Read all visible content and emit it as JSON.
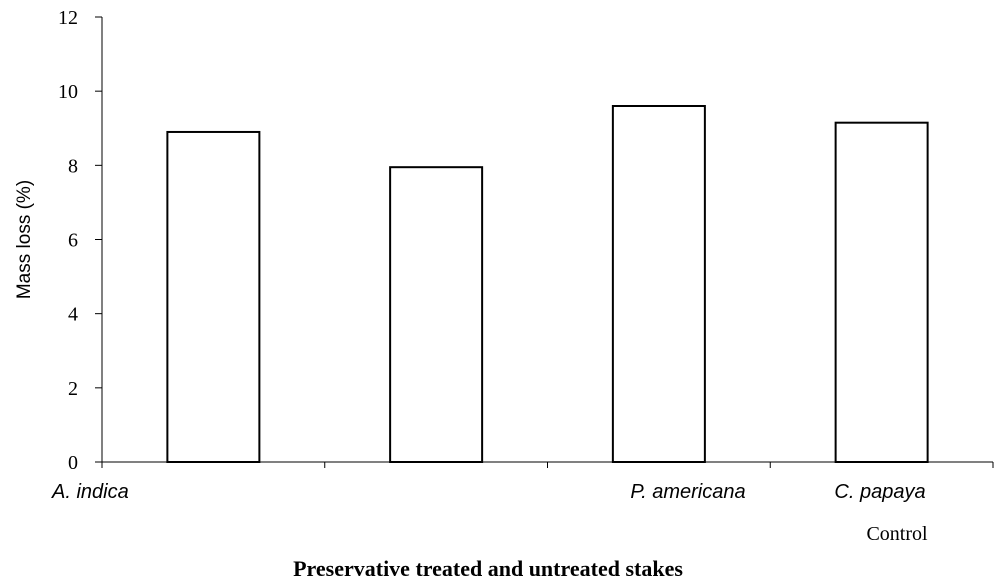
{
  "chart_data": {
    "type": "bar",
    "categories": [
      "A. indica",
      "",
      "P. americana",
      "C. papaya Control"
    ],
    "category_labels": [
      "A. indica",
      "",
      "P. americana",
      "C. papaya"
    ],
    "control_label": "Control",
    "values": [
      8.9,
      7.95,
      9.6,
      9.15
    ],
    "title": "",
    "xlabel": "Preservative treated and untreated stakes",
    "ylabel": "Mass loss (%)",
    "ylim": [
      0,
      12
    ],
    "yticks": [
      0,
      2,
      4,
      6,
      8,
      10,
      12
    ],
    "grid": false,
    "legend": "none",
    "colors": {
      "bar_fill": "#ffffff",
      "bar_stroke": "#000000",
      "axis": "#000000",
      "background": "#ffffff"
    }
  }
}
